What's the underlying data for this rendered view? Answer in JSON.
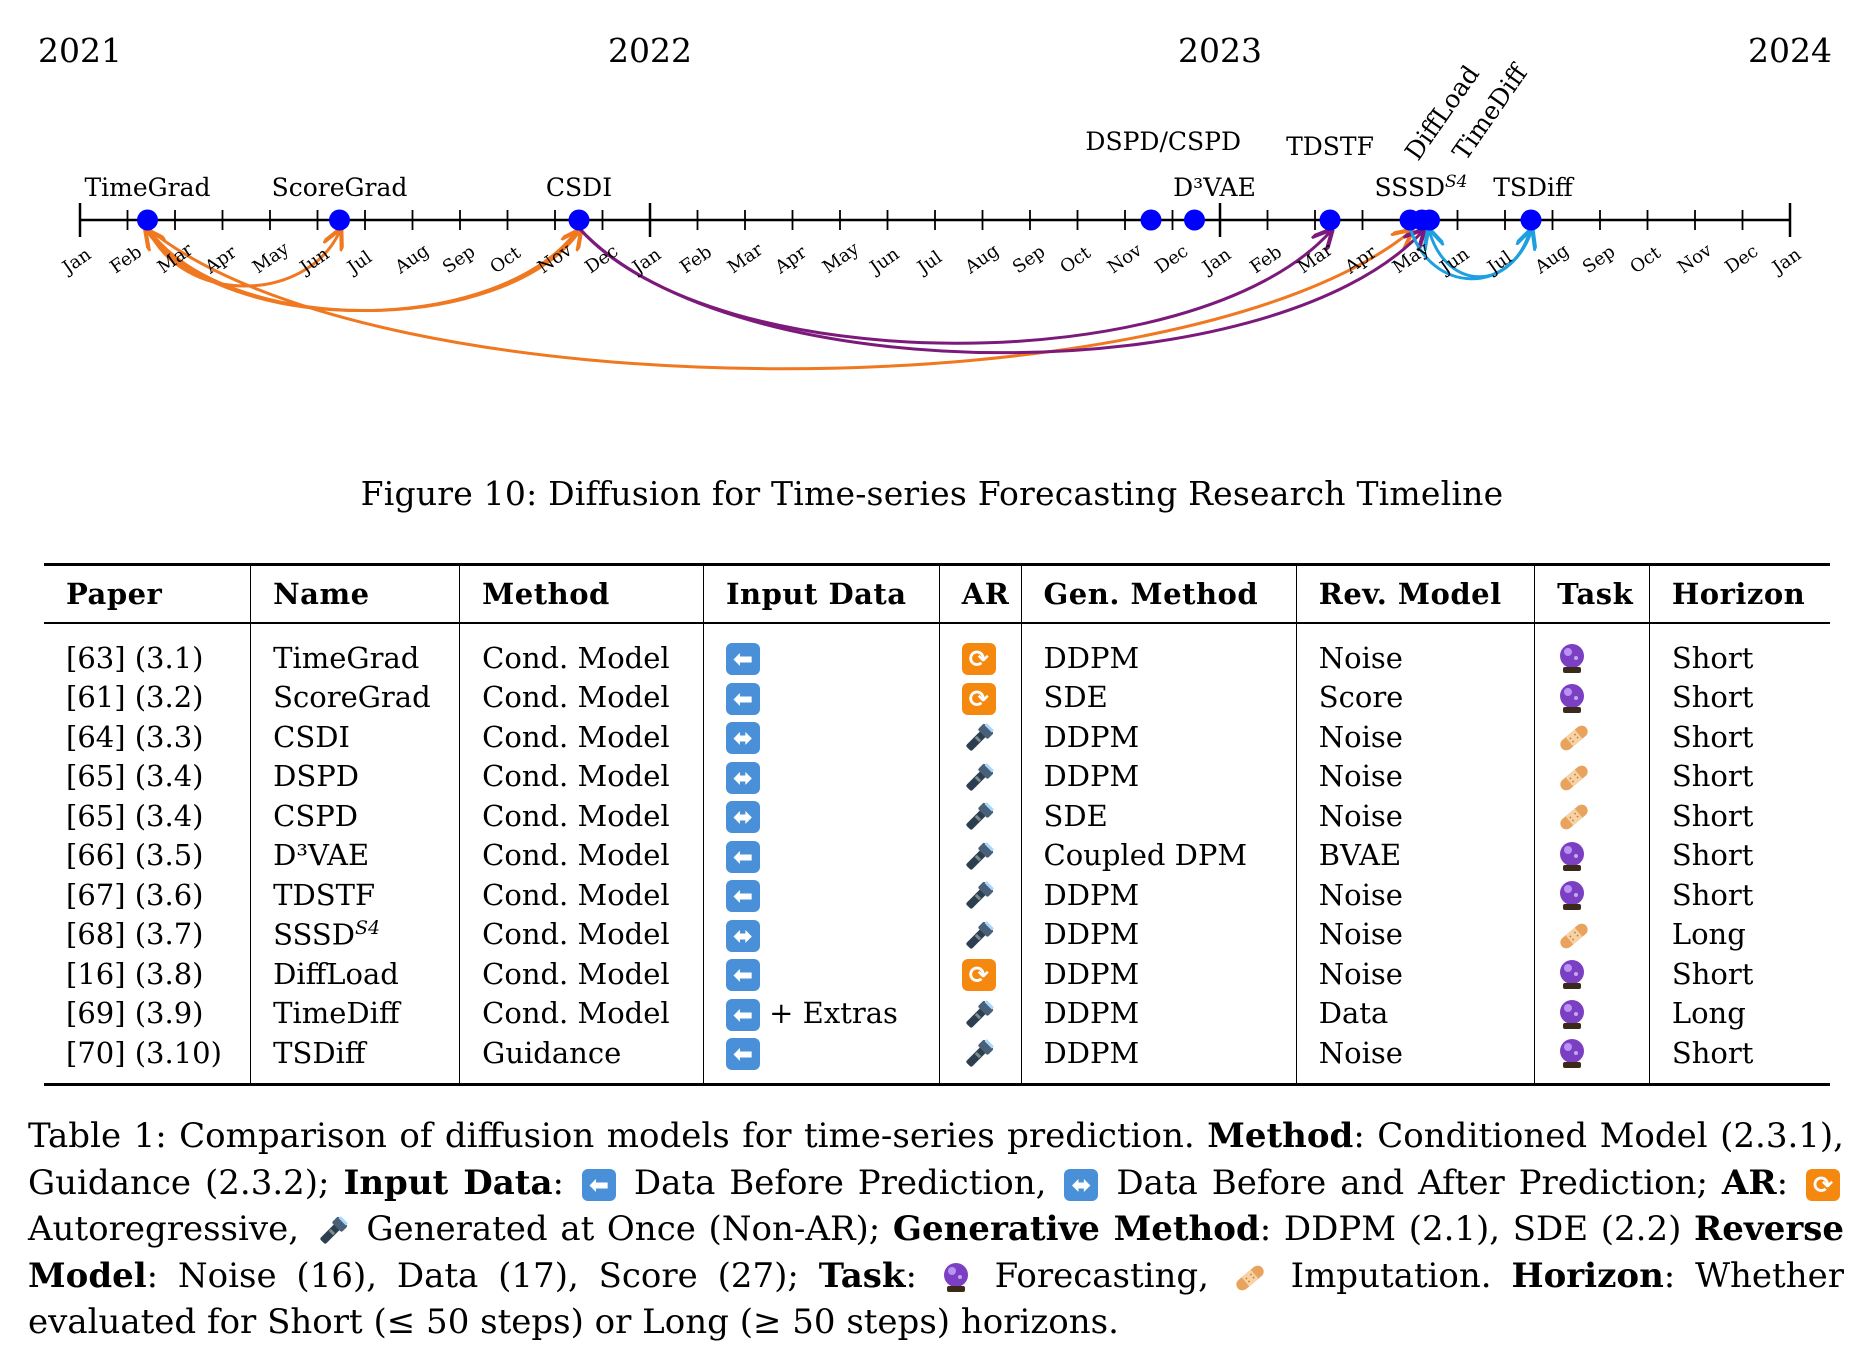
{
  "timeline": {
    "years": [
      "2021",
      "2022",
      "2023",
      "2024"
    ],
    "months": [
      "Jan",
      "Feb",
      "Mar",
      "Apr",
      "May",
      "Jun",
      "Jul",
      "Aug",
      "Sep",
      "Oct",
      "Nov",
      "Dec"
    ],
    "papers": [
      {
        "name": "TimeGrad",
        "date": "2021-02"
      },
      {
        "name": "ScoreGrad",
        "date": "2021-06"
      },
      {
        "name": "CSDI",
        "date": "2021-11"
      },
      {
        "name": "DSPD/CSPD",
        "date": "2022-11"
      },
      {
        "name": "D³VAE",
        "date": "2022-12"
      },
      {
        "name": "TDSTF",
        "date": "2023-03"
      },
      {
        "name": "SSSD",
        "sup": "S4",
        "date": "2023-05"
      },
      {
        "name": "DiffLoad",
        "date": "2023-05"
      },
      {
        "name": "TimeDiff",
        "date": "2023-06"
      },
      {
        "name": "TSDiff",
        "date": "2023-07"
      }
    ],
    "links": [
      {
        "from": "TimeGrad",
        "to": "ScoreGrad",
        "color": "#f07820"
      },
      {
        "from": "TimeGrad",
        "to": "CSDI",
        "color": "#f07820"
      },
      {
        "from": "CSDI",
        "to": "TimeGrad",
        "color": "#f07820"
      },
      {
        "from": "TimeGrad",
        "to": "DiffLoad",
        "color": "#f07820"
      },
      {
        "from": "CSDI",
        "to": "TDSTF",
        "color": "#7b1a7b"
      },
      {
        "from": "CSDI",
        "to": "SSSD",
        "color": "#7b1a7b"
      },
      {
        "from": "DiffLoad",
        "to": "TSDiff",
        "color": "#1ea0e0"
      },
      {
        "from": "TSDiff",
        "to": "TimeDiff",
        "color": "#1ea0e0"
      }
    ],
    "dot_color": "#0000ff"
  },
  "figure_caption": "Figure 10: Diffusion for Time-series Forecasting Research Timeline",
  "table": {
    "headers": [
      "Paper",
      "Name",
      "Method",
      "Input Data",
      "AR",
      "Gen. Method",
      "Rev. Model",
      "Task",
      "Horizon"
    ],
    "rows": [
      {
        "paper": "[63] (3.1)",
        "name": "TimeGrad",
        "method": "Cond. Model",
        "input": "left",
        "extra": "",
        "ar": "ar",
        "gen": "DDPM",
        "rev": "Noise",
        "task": "forecast",
        "horizon": "Short"
      },
      {
        "paper": "[61] (3.2)",
        "name": "ScoreGrad",
        "method": "Cond. Model",
        "input": "left",
        "extra": "",
        "ar": "ar",
        "gen": "SDE",
        "rev": "Score",
        "task": "forecast",
        "horizon": "Short"
      },
      {
        "paper": "[64] (3.3)",
        "name": "CSDI",
        "method": "Cond. Model",
        "input": "lr",
        "extra": "",
        "ar": "once",
        "gen": "DDPM",
        "rev": "Noise",
        "task": "impute",
        "horizon": "Short"
      },
      {
        "paper": "[65] (3.4)",
        "name": "DSPD",
        "method": "Cond. Model",
        "input": "lr",
        "extra": "",
        "ar": "once",
        "gen": "DDPM",
        "rev": "Noise",
        "task": "impute",
        "horizon": "Short"
      },
      {
        "paper": "[65] (3.4)",
        "name": "CSPD",
        "method": "Cond. Model",
        "input": "lr",
        "extra": "",
        "ar": "once",
        "gen": "SDE",
        "rev": "Noise",
        "task": "impute",
        "horizon": "Short"
      },
      {
        "paper": "[66] (3.5)",
        "name": "D³VAE",
        "method": "Cond. Model",
        "input": "left",
        "extra": "",
        "ar": "once",
        "gen": "Coupled DPM",
        "rev": "BVAE",
        "task": "forecast",
        "horizon": "Short"
      },
      {
        "paper": "[67] (3.6)",
        "name": "TDSTF",
        "method": "Cond. Model",
        "input": "left",
        "extra": "",
        "ar": "once",
        "gen": "DDPM",
        "rev": "Noise",
        "task": "forecast",
        "horizon": "Short"
      },
      {
        "paper": "[68] (3.7)",
        "name": "SSSD",
        "name_sup": "S4",
        "method": "Cond. Model",
        "input": "lr",
        "extra": "",
        "ar": "once",
        "gen": "DDPM",
        "rev": "Noise",
        "task": "impute",
        "horizon": "Long"
      },
      {
        "paper": "[16] (3.8)",
        "name": "DiffLoad",
        "method": "Cond. Model",
        "input": "left",
        "extra": "",
        "ar": "ar",
        "gen": "DDPM",
        "rev": "Noise",
        "task": "forecast",
        "horizon": "Short"
      },
      {
        "paper": "[69] (3.9)",
        "name": "TimeDiff",
        "method": "Cond. Model",
        "input": "left",
        "extra": "+ Extras",
        "ar": "once",
        "gen": "DDPM",
        "rev": "Data",
        "task": "forecast",
        "horizon": "Long"
      },
      {
        "paper": "[70] (3.10)",
        "name": "TSDiff",
        "method": "Guidance",
        "input": "left",
        "extra": "",
        "ar": "once",
        "gen": "DDPM",
        "rev": "Noise",
        "task": "forecast",
        "horizon": "Short"
      }
    ],
    "icon_names": {
      "left": "left-arrow-icon",
      "lr": "left-right-arrow-icon",
      "ar": "repeat-arrows-icon",
      "once": "flashlight-icon",
      "forecast": "crystal-ball-icon",
      "impute": "bandage-icon"
    }
  },
  "table_caption": {
    "c1": "Table 1: Comparison of diffusion models for time-series prediction. ",
    "b_method": "Method",
    "c2": ": Conditioned Model (2.3.1), Guidance (2.3.2); ",
    "b_input": "Input Data",
    "c3": ": ",
    "c4": " Data Before Prediction, ",
    "c5": " Data Before and After Prediction; ",
    "b_ar": "AR",
    "c6": ": ",
    "c7": " Autoregressive, ",
    "c8": " Generated at Once (Non-AR); ",
    "b_gen": "Generative Method",
    "c9": ": DDPM (2.1), SDE (2.2) ",
    "b_rev": "Reverse Model",
    "c10": ": Noise (16), Data (17), Score (27); ",
    "b_task": "Task",
    "c11": ": ",
    "c12": " Forecasting, ",
    "c13": " Imputation. ",
    "b_horizon": "Horizon",
    "c14": ": Whether evaluated for Short (≤ 50 steps) or Long (≥ 50 steps) horizons."
  }
}
